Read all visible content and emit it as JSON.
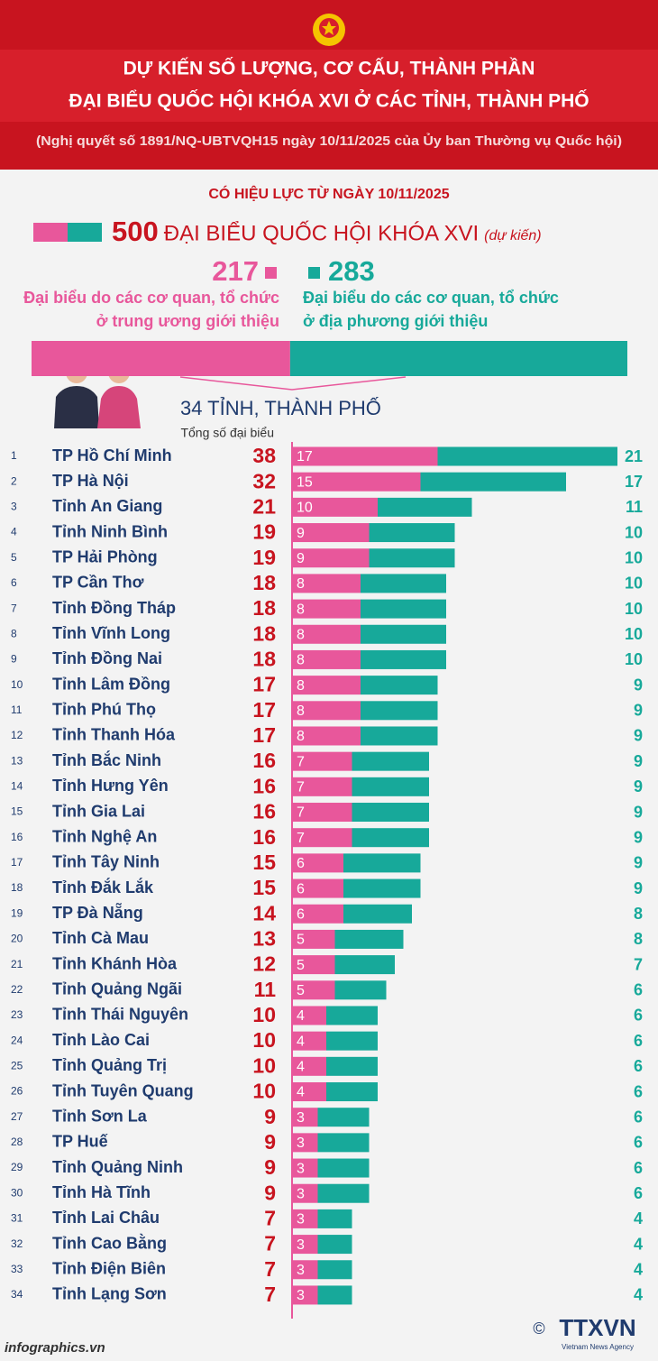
{
  "header": {
    "title_lines": [
      "DỰ KIẾN SỐ LƯỢNG, CƠ CẤU, THÀNH PHẦN",
      "ĐẠI BIỂU QUỐC HỘI KHÓA XVI Ở CÁC TỈNH, THÀNH PHỐ"
    ],
    "subtitle": "(Nghị quyết số 1891/NQ-UBTVQH15 ngày 10/11/2025 của Ủy ban Thường vụ Quốc hội)"
  },
  "summary": {
    "effective": "CÓ HIỆU LỰC TỪ NGÀY 10/11/2025",
    "total": 500,
    "total_label": "ĐẠI BIỂU QUỐC HỘI KHÓA XVI",
    "total_note": "(dự kiến)",
    "central": {
      "value": 217,
      "lines": [
        "Đại biểu do các cơ quan, tổ chức",
        "ở trung ương giới thiệu"
      ]
    },
    "local": {
      "value": 283,
      "lines": [
        "Đại biểu do các cơ quan, tổ chức",
        "ở địa phương giới thiệu"
      ]
    }
  },
  "chart_data": {
    "type": "bar",
    "orientation": "horizontal",
    "stacked": true,
    "title": "34 TỈNH, THÀNH PHỐ",
    "totals_label": "Tổng số đại biểu",
    "ranks": [
      1,
      2,
      3,
      4,
      5,
      6,
      7,
      8,
      9,
      10,
      11,
      12,
      13,
      14,
      15,
      16,
      17,
      18,
      19,
      20,
      21,
      22,
      23,
      24,
      25,
      26,
      27,
      28,
      29,
      30,
      31,
      32,
      33,
      34
    ],
    "categories": [
      "TP Hồ Chí Minh",
      "TP Hà Nội",
      "Tỉnh An Giang",
      "Tỉnh Ninh Bình",
      "TP Hải Phòng",
      "TP Cần Thơ",
      "Tỉnh Đồng Tháp",
      "Tỉnh Vĩnh Long",
      "Tỉnh Đồng Nai",
      "Tỉnh Lâm Đồng",
      "Tỉnh Phú Thọ",
      "Tỉnh Thanh Hóa",
      "Tỉnh Bắc Ninh",
      "Tỉnh Hưng Yên",
      "Tỉnh Gia Lai",
      "Tỉnh Nghệ An",
      "Tỉnh Tây Ninh",
      "Tỉnh Đắk Lắk",
      "TP Đà Nẵng",
      "Tỉnh Cà Mau",
      "Tỉnh Khánh Hòa",
      "Tỉnh Quảng Ngãi",
      "Tỉnh Thái Nguyên",
      "Tỉnh Lào Cai",
      "Tỉnh Quảng Trị",
      "Tỉnh Tuyên Quang",
      "Tỉnh Sơn La",
      "TP Huế",
      "Tỉnh Quảng Ninh",
      "Tỉnh Hà Tĩnh",
      "Tỉnh Lai Châu",
      "Tỉnh Cao Bằng",
      "Tỉnh Điện Biên",
      "Tỉnh Lạng Sơn"
    ],
    "totals": [
      38,
      32,
      21,
      19,
      19,
      18,
      18,
      18,
      18,
      17,
      17,
      17,
      16,
      16,
      16,
      16,
      15,
      15,
      14,
      13,
      12,
      11,
      10,
      10,
      10,
      10,
      9,
      9,
      9,
      9,
      7,
      7,
      7,
      7
    ],
    "series": [
      {
        "color": "#e8579b",
        "values": [
          17,
          15,
          10,
          9,
          9,
          8,
          8,
          8,
          8,
          8,
          8,
          8,
          7,
          7,
          7,
          7,
          6,
          6,
          6,
          5,
          5,
          5,
          4,
          4,
          4,
          4,
          3,
          3,
          3,
          3,
          3,
          3,
          3,
          3
        ]
      },
      {
        "color": "#17a99a",
        "values": [
          21,
          17,
          11,
          10,
          10,
          10,
          10,
          10,
          10,
          9,
          9,
          9,
          9,
          9,
          9,
          9,
          9,
          9,
          8,
          8,
          7,
          6,
          6,
          6,
          6,
          6,
          6,
          6,
          6,
          6,
          4,
          4,
          4,
          4
        ]
      }
    ]
  },
  "footer": {
    "source": "infographics.vn",
    "copyright": "©",
    "logo": "TTXVN",
    "logo_sub": "Vietnam News Agency"
  }
}
